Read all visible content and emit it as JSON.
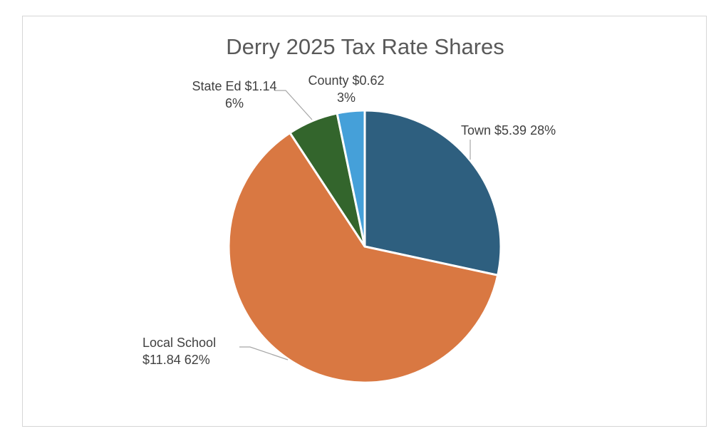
{
  "chart_data": {
    "type": "pie",
    "title": "Derry 2025 Tax Rate Shares",
    "slices": [
      {
        "name": "Town",
        "value": 5.39,
        "percent": 28,
        "color": "#2e5f7f",
        "label_lines": [
          "Town $5.39 28%"
        ]
      },
      {
        "name": "Local School",
        "value": 11.84,
        "percent": 62,
        "color": "#d97842",
        "label_lines": [
          "Local School",
          "$11.84  62%"
        ]
      },
      {
        "name": "State Ed",
        "value": 1.14,
        "percent": 6,
        "color": "#33652c",
        "label_lines": [
          "State Ed $1.14",
          "6%"
        ]
      },
      {
        "name": "County",
        "value": 0.62,
        "percent": 3,
        "color": "#45a0d9",
        "label_lines": [
          "County $0.62",
          "3%"
        ]
      }
    ],
    "start_angle_deg": 0,
    "direction": "clockwise",
    "legend": "none",
    "data_labels": "outside with leader lines"
  }
}
